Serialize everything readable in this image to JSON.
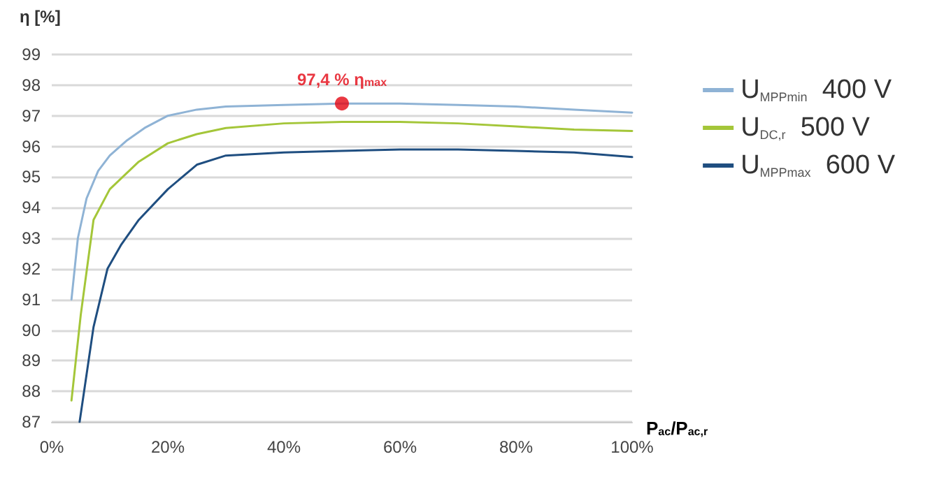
{
  "chart_data": {
    "type": "line",
    "ylabel": "η [%]",
    "xlabel": "P$_{ac}$/P$_{ac,r}$",
    "xlim": [
      0,
      100
    ],
    "xticks": [
      {
        "value": 0,
        "label": "0%"
      },
      {
        "value": 20,
        "label": "20%"
      },
      {
        "value": 40,
        "label": "40%"
      },
      {
        "value": 60,
        "label": "60%"
      },
      {
        "value": 80,
        "label": "80%"
      },
      {
        "value": 100,
        "label": "100%"
      }
    ],
    "ylim": [
      87,
      99
    ],
    "yticks": [
      87,
      88,
      89,
      90,
      91,
      92,
      93,
      94,
      95,
      96,
      97,
      98,
      99
    ],
    "grid": "y",
    "legend": "right",
    "marker": "none",
    "line_style": "solid",
    "series": [
      {
        "name": "U$_{MPPmin}$  400 V",
        "color": "#8fb3d5",
        "x": [
          3.4,
          4.5,
          6,
          8,
          10,
          13,
          16,
          20,
          25,
          30,
          40,
          50,
          60,
          70,
          80,
          90,
          100
        ],
        "values": [
          91.0,
          93.0,
          94.3,
          95.2,
          95.7,
          96.2,
          96.6,
          97.0,
          97.2,
          97.3,
          97.35,
          97.4,
          97.4,
          97.35,
          97.3,
          97.2,
          97.1
        ]
      },
      {
        "name": "U$_{DC,r}$  500 V",
        "color": "#a4c639",
        "x": [
          3.4,
          5,
          7.2,
          10,
          15,
          20,
          25,
          30,
          40,
          50,
          60,
          70,
          80,
          90,
          100
        ],
        "values": [
          87.7,
          90.5,
          93.6,
          94.6,
          95.5,
          96.1,
          96.4,
          96.6,
          96.75,
          96.8,
          96.8,
          96.75,
          96.65,
          96.55,
          96.5
        ]
      },
      {
        "name": "U$_{MPPmax}$  600 V",
        "color": "#1f4e80",
        "x": [
          4.8,
          7.2,
          9.6,
          12,
          15,
          20,
          25,
          30,
          40,
          50,
          60,
          70,
          80,
          90,
          100
        ],
        "values": [
          87,
          90.1,
          92.0,
          92.8,
          93.6,
          94.6,
          95.4,
          95.7,
          95.8,
          95.85,
          95.9,
          95.9,
          95.85,
          95.8,
          95.65
        ]
      }
    ],
    "annotations": [
      {
        "text": "97,4 % η$_{max}$",
        "x": 50,
        "y": 97.4
      }
    ]
  }
}
